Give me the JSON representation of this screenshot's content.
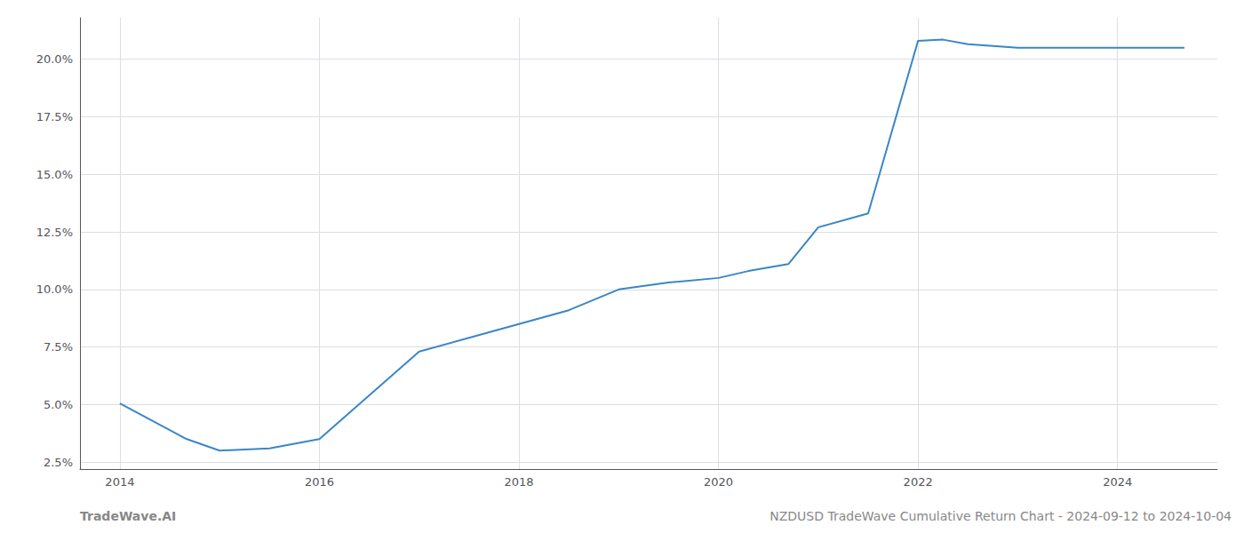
{
  "chart_data": {
    "type": "line",
    "annotations": [
      "TradeWave.AI",
      "NZDUSD TradeWave Cumulative Return Chart - 2024-09-12 to 2024-10-04"
    ],
    "x": [
      2014.0,
      2014.67,
      2015.0,
      2015.5,
      2016.0,
      2016.5,
      2017.0,
      2017.5,
      2018.0,
      2018.5,
      2019.0,
      2019.5,
      2020.0,
      2020.3,
      2020.7,
      2021.0,
      2021.5,
      2022.0,
      2022.25,
      2022.5,
      2023.0,
      2023.5,
      2024.0,
      2024.67
    ],
    "values": [
      5.05,
      3.5,
      3.0,
      3.1,
      3.5,
      5.4,
      7.3,
      7.9,
      8.5,
      9.1,
      10.0,
      10.3,
      10.5,
      10.8,
      11.1,
      12.7,
      13.3,
      20.8,
      20.85,
      20.65,
      20.5,
      20.5,
      20.5,
      20.5
    ],
    "color": "#3a86c8",
    "xlim": [
      2013.6,
      2025.0
    ],
    "ylim": [
      2.2,
      21.8
    ],
    "xticks": [
      2014,
      2016,
      2018,
      2020,
      2022,
      2024
    ],
    "yticks": [
      {
        "value": 2.5,
        "label": "2.5%"
      },
      {
        "value": 5.0,
        "label": "5.0%"
      },
      {
        "value": 7.5,
        "label": "7.5%"
      },
      {
        "value": 10.0,
        "label": "10.0%"
      },
      {
        "value": 12.5,
        "label": "12.5%"
      },
      {
        "value": 15.0,
        "label": "15.0%"
      },
      {
        "value": 17.5,
        "label": "17.5%"
      },
      {
        "value": 20.0,
        "label": "20.0%"
      }
    ],
    "grid": true
  }
}
